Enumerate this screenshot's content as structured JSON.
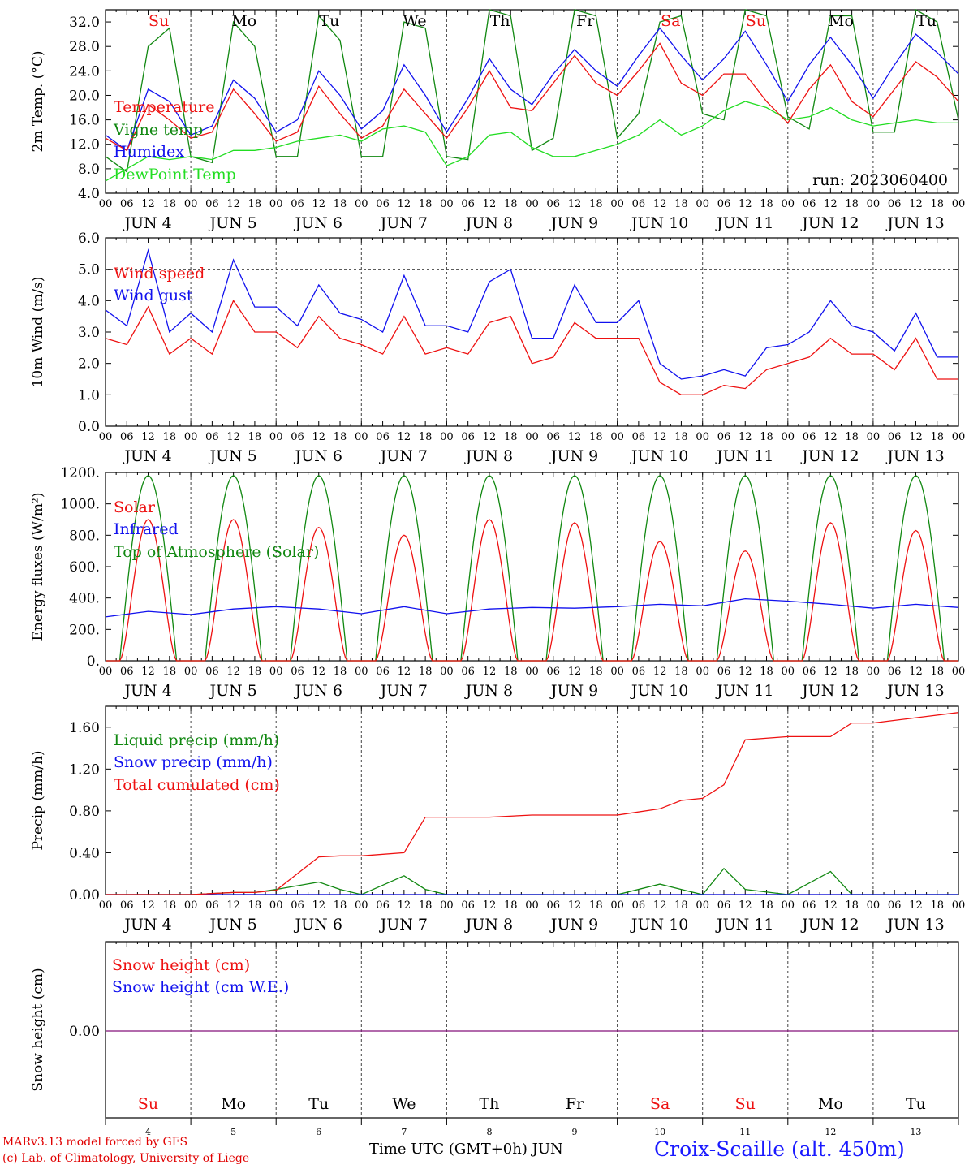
{
  "chart_data": [
    {
      "type": "line",
      "ylabel": "2m Temp. (°C)",
      "ylim": [
        4,
        34
      ],
      "yticks": [
        "4.0",
        "8.0",
        "12.0",
        "16.0",
        "20.0",
        "24.0",
        "28.0",
        "32.0"
      ],
      "grid": "vertical dotted at 00 UTC of each day",
      "legend_position": "left",
      "annotation": "run: 2023060400",
      "x_hours": [
        0,
        6,
        12,
        18,
        24,
        30,
        36,
        42,
        48,
        54,
        60,
        66,
        72,
        78,
        84,
        90,
        96,
        102,
        108,
        114,
        120,
        126,
        132,
        138,
        144,
        150,
        156,
        162,
        168,
        174,
        180,
        186,
        192,
        198,
        204,
        210,
        216,
        222,
        228,
        234,
        240
      ],
      "series": [
        {
          "name": "Temperature",
          "color": "#ee1111",
          "values": [
            13.0,
            11.0,
            18.5,
            16.0,
            13.0,
            14.0,
            21.0,
            17.0,
            12.5,
            14.0,
            21.5,
            17.0,
            13.0,
            15.0,
            21.0,
            17.0,
            13.0,
            18.0,
            24.0,
            18.0,
            17.5,
            22.0,
            26.5,
            22.0,
            20.0,
            24.0,
            28.5,
            22.0,
            20.0,
            23.5,
            23.5,
            19.0,
            15.5,
            21.0,
            25.0,
            19.0,
            16.5,
            21.0,
            25.5,
            23.0,
            19.0
          ]
        },
        {
          "name": "Vigne temp",
          "color": "#118811",
          "values": [
            10.0,
            7.5,
            28.0,
            31.0,
            10.0,
            9.0,
            32.0,
            28.0,
            10.0,
            10.0,
            33.0,
            29.0,
            10.0,
            10.0,
            32.0,
            31.0,
            10.0,
            9.5,
            34.0,
            33.0,
            11.0,
            13.0,
            34.0,
            33.0,
            13.0,
            17.0,
            32.0,
            33.0,
            17.0,
            16.0,
            34.0,
            33.0,
            16.5,
            14.5,
            33.0,
            33.0,
            14.0,
            14.0,
            34.0,
            32.0,
            16.0
          ]
        },
        {
          "name": "Humidex",
          "color": "#1111ee",
          "values": [
            13.5,
            11.0,
            21.0,
            19.0,
            13.5,
            15.0,
            22.5,
            19.5,
            14.0,
            16.0,
            24.0,
            20.0,
            14.5,
            17.5,
            25.0,
            20.0,
            14.0,
            19.5,
            26.0,
            21.0,
            18.5,
            23.5,
            27.5,
            24.0,
            21.5,
            26.5,
            31.0,
            26.5,
            22.5,
            26.0,
            30.5,
            25.0,
            19.0,
            25.0,
            29.5,
            25.0,
            19.5,
            25.0,
            30.0,
            27.0,
            23.5
          ]
        },
        {
          "name": "DewPoint Temp",
          "color": "#22dd22",
          "values": [
            6.0,
            8.0,
            10.0,
            9.5,
            10.0,
            9.5,
            11.0,
            11.0,
            11.5,
            12.5,
            13.0,
            13.5,
            12.5,
            14.5,
            15.0,
            14.0,
            8.5,
            10.0,
            13.5,
            14.0,
            11.5,
            10.0,
            10.0,
            11.0,
            12.0,
            13.5,
            16.0,
            13.5,
            15.0,
            17.5,
            19.0,
            18.0,
            16.0,
            16.5,
            18.0,
            16.0,
            15.0,
            15.5,
            16.0,
            15.5,
            15.5
          ]
        }
      ]
    },
    {
      "type": "line",
      "ylabel": "10m Wind (m/s)",
      "ylim": [
        0,
        6
      ],
      "yticks": [
        "0.0",
        "1.0",
        "2.0",
        "3.0",
        "4.0",
        "5.0",
        "6.0"
      ],
      "grid": "vertical dotted at 00 UTC, horizontal dashed at 5.0",
      "legend_position": "left",
      "x_hours": [
        0,
        6,
        12,
        18,
        24,
        30,
        36,
        42,
        48,
        54,
        60,
        66,
        72,
        78,
        84,
        90,
        96,
        102,
        108,
        114,
        120,
        126,
        132,
        138,
        144,
        150,
        156,
        162,
        168,
        174,
        180,
        186,
        192,
        198,
        204,
        210,
        216,
        222,
        228,
        234,
        240
      ],
      "series": [
        {
          "name": "Wind speed",
          "color": "#ee1111",
          "values": [
            2.8,
            2.6,
            3.8,
            2.3,
            2.8,
            2.3,
            4.0,
            3.0,
            3.0,
            2.5,
            3.5,
            2.8,
            2.6,
            2.3,
            3.5,
            2.3,
            2.5,
            2.3,
            3.3,
            3.5,
            2.0,
            2.2,
            3.3,
            2.8,
            2.8,
            2.8,
            1.4,
            1.0,
            1.0,
            1.3,
            1.2,
            1.8,
            2.0,
            2.2,
            2.8,
            2.3,
            2.3,
            1.8,
            2.8,
            1.5,
            1.5
          ]
        },
        {
          "name": "Wind gust",
          "color": "#1111ee",
          "values": [
            3.7,
            3.2,
            5.6,
            3.0,
            3.6,
            3.0,
            5.3,
            3.8,
            3.8,
            3.2,
            4.5,
            3.6,
            3.4,
            3.0,
            4.8,
            3.2,
            3.2,
            3.0,
            4.6,
            5.0,
            2.8,
            2.8,
            4.5,
            3.3,
            3.3,
            4.0,
            2.0,
            1.5,
            1.6,
            1.8,
            1.6,
            2.5,
            2.6,
            3.0,
            4.0,
            3.2,
            3.0,
            2.4,
            3.6,
            2.2,
            2.2
          ]
        }
      ]
    },
    {
      "type": "line",
      "ylabel": "Energy fluxes (W/m²)",
      "ylim": [
        0,
        1200
      ],
      "yticks": [
        "0.",
        "200.",
        "400.",
        "600.",
        "800.",
        "1000.",
        "1200."
      ],
      "grid": "vertical dotted at 00 UTC",
      "legend_position": "left",
      "solar_daily_peak": [
        900,
        900,
        850,
        800,
        900,
        880,
        760,
        700,
        880,
        830
      ],
      "toa_daily_peak": 1180,
      "daylight_hours_utc": [
        4,
        20
      ],
      "x_hours_infrared": [
        0,
        12,
        24,
        36,
        48,
        60,
        72,
        84,
        96,
        108,
        120,
        132,
        144,
        156,
        168,
        180,
        192,
        204,
        216,
        228,
        240
      ],
      "series": [
        {
          "name": "Solar",
          "color": "#ee1111",
          "values": "daily peaks in solar_daily_peak"
        },
        {
          "name": "Infrared",
          "color": "#1111ee",
          "values": [
            280,
            315,
            295,
            330,
            345,
            330,
            300,
            345,
            300,
            330,
            340,
            335,
            345,
            360,
            350,
            395,
            380,
            360,
            335,
            360,
            340
          ]
        },
        {
          "name": "Top of Atmosphere (Solar)",
          "color": "#118811",
          "values": "daily peak toa_daily_peak"
        }
      ]
    },
    {
      "type": "line",
      "ylabel": "Precip (mm/h)",
      "ylim": [
        0,
        1.8
      ],
      "yticks": [
        "0.00",
        "0.40",
        "0.80",
        "1.20",
        "1.60"
      ],
      "grid": "vertical dotted at 00 UTC",
      "legend_position": "left",
      "x_hours": [
        0,
        12,
        24,
        36,
        42,
        48,
        60,
        66,
        72,
        84,
        90,
        96,
        108,
        120,
        144,
        156,
        162,
        168,
        174,
        180,
        192,
        204,
        210,
        216,
        240
      ],
      "series": [
        {
          "name": "Liquid precip (mm/h)",
          "color": "#118811",
          "values": [
            0.0,
            0.0,
            0.0,
            0.02,
            0.02,
            0.05,
            0.12,
            0.05,
            0.0,
            0.18,
            0.05,
            0.0,
            0.0,
            0.0,
            0.0,
            0.1,
            0.05,
            0.0,
            0.25,
            0.05,
            0.0,
            0.22,
            0.0,
            0.0,
            0.0
          ]
        },
        {
          "name": "Snow precip (mm/h)",
          "color": "#1111ee",
          "values": [
            0,
            0,
            0,
            0,
            0,
            0,
            0,
            0,
            0,
            0,
            0,
            0,
            0,
            0,
            0,
            0,
            0,
            0,
            0,
            0,
            0,
            0,
            0,
            0,
            0
          ]
        },
        {
          "name": "Total cumulated (cm)",
          "color": "#ee1111",
          "values": [
            0.0,
            0.0,
            0.0,
            0.02,
            0.02,
            0.04,
            0.36,
            0.37,
            0.37,
            0.4,
            0.74,
            0.74,
            0.74,
            0.76,
            0.76,
            0.82,
            0.9,
            0.92,
            1.05,
            1.48,
            1.51,
            1.51,
            1.64,
            1.64,
            1.74
          ]
        }
      ]
    },
    {
      "type": "line",
      "ylabel": "Snow height (cm)",
      "yticks": [
        "0.00"
      ],
      "grid": "vertical dotted at 00 UTC",
      "legend_position": "left",
      "series": [
        {
          "name": "Snow height (cm)",
          "color": "#ee1111",
          "values": [
            0.0,
            0.0
          ]
        },
        {
          "name": "Snow height (cm W.E.)",
          "color": "#1111ee",
          "values": [
            0.0,
            0.0
          ]
        }
      ]
    }
  ],
  "x_axis": {
    "hour_labels": [
      "00",
      "06",
      "12",
      "18"
    ],
    "date_labels": [
      "JUN  4",
      "JUN  5",
      "JUN  6",
      "JUN  7",
      "JUN  8",
      "JUN  9",
      "JUN 10",
      "JUN 11",
      "JUN 12",
      "JUN 13"
    ],
    "weekdays": [
      {
        "name": "Su",
        "color": "#ee1111"
      },
      {
        "name": "Mo",
        "color": "#000000"
      },
      {
        "name": "Tu",
        "color": "#000000"
      },
      {
        "name": "We",
        "color": "#000000"
      },
      {
        "name": "Th",
        "color": "#000000"
      },
      {
        "name": "Fr",
        "color": "#000000"
      },
      {
        "name": "Sa",
        "color": "#ee1111"
      },
      {
        "name": "Su",
        "color": "#ee1111"
      },
      {
        "name": "Mo",
        "color": "#000000"
      },
      {
        "name": "Tu",
        "color": "#000000"
      }
    ],
    "day_numbers": [
      "4",
      "5",
      "6",
      "7",
      "8",
      "9",
      "10",
      "11",
      "12",
      "13"
    ],
    "title": "Time UTC (GMT+0h)",
    "month": "JUN"
  },
  "footer": {
    "credit1": "MARv3.13 model forced by GFS",
    "credit2": "(c) Lab. of Climatology, University of Liege",
    "station": "Croix-Scaille (alt. 450m)"
  }
}
